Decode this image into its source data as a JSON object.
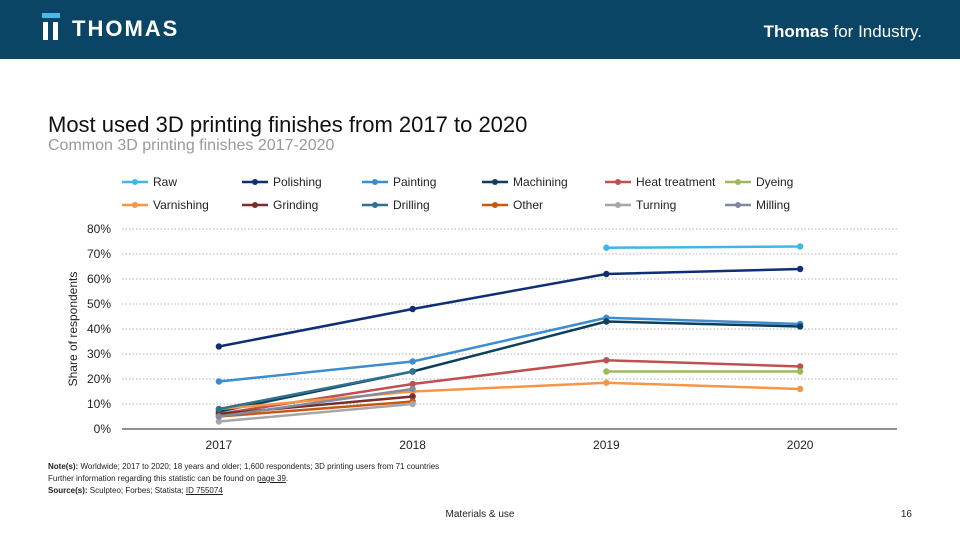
{
  "header": {
    "logo_text": "THOMAS",
    "tagline_bold": "Thomas",
    "tagline_rest": " for Industry."
  },
  "page": {
    "title": "Most used 3D printing finishes from 2017 to 2020",
    "subtitle": "Common 3D printing finishes 2017-2020",
    "footer": "Materials & use",
    "page_number": "16"
  },
  "notes": {
    "note_label": "Note(s):",
    "note_text": " Worldwide; 2017 to 2020; 18 years and older; 1,600 respondents; 3D printing users from 71 countries",
    "further_text": "Further information regarding this statistic can be found on ",
    "further_link": "page 39",
    "further_end": ".",
    "source_label": "Source(s):",
    "source_text": " Sculpteo; Forbes; Statista; ",
    "source_link": "ID 755074"
  },
  "chart_data": {
    "type": "line",
    "title": "Most used 3D printing finishes from 2017 to 2020",
    "subtitle": "Common 3D printing finishes 2017-2020",
    "xlabel": "",
    "ylabel": "Share of respondents",
    "x": [
      "2017",
      "2018",
      "2019",
      "2020"
    ],
    "ylim": [
      0,
      80
    ],
    "yticks": [
      0,
      10,
      20,
      30,
      40,
      50,
      60,
      70,
      80
    ],
    "ytick_format": "percent",
    "grid": "horizontal-dotted",
    "legend_position": "top",
    "series": [
      {
        "name": "Raw",
        "color": "#41b6e6",
        "values": [
          null,
          null,
          72.5,
          73
        ]
      },
      {
        "name": "Polishing",
        "color": "#0e2f73",
        "values": [
          33,
          48,
          62,
          64
        ]
      },
      {
        "name": "Painting",
        "color": "#3c8dd0",
        "values": [
          19,
          27,
          44.5,
          42
        ]
      },
      {
        "name": "Machining",
        "color": "#0b3f5c",
        "values": [
          7,
          23,
          43,
          41
        ]
      },
      {
        "name": "Heat treatment",
        "color": "#c0504d",
        "values": [
          6,
          18,
          27.5,
          25
        ]
      },
      {
        "name": "Dyeing",
        "color": "#9bbb59",
        "values": [
          null,
          null,
          23,
          23
        ]
      },
      {
        "name": "Varnishing",
        "color": "#f79646",
        "values": [
          8,
          15,
          18.5,
          16
        ]
      },
      {
        "name": "Grinding",
        "color": "#7b2c2c",
        "values": [
          6,
          13,
          null,
          null
        ]
      },
      {
        "name": "Drilling",
        "color": "#31708f",
        "values": [
          8,
          23,
          null,
          null
        ]
      },
      {
        "name": "Other",
        "color": "#c65911",
        "values": [
          5,
          11,
          null,
          null
        ]
      },
      {
        "name": "Turning",
        "color": "#a6a6a6",
        "values": [
          3,
          10,
          null,
          null
        ]
      },
      {
        "name": "Milling",
        "color": "#7f8ca0",
        "values": [
          5,
          16,
          null,
          null
        ]
      }
    ]
  }
}
